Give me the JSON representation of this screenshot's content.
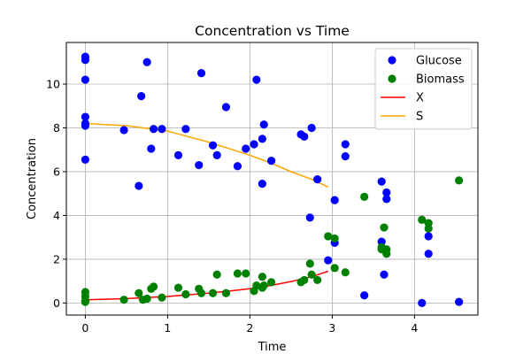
{
  "chart_data": {
    "type": "scatter",
    "title": "Concentration vs Time",
    "xlabel": "Time",
    "ylabel": "Concentration",
    "xlim": [
      -0.23,
      4.77
    ],
    "ylim": [
      -0.55,
      11.9
    ],
    "xticks": [
      0,
      1,
      2,
      3,
      4
    ],
    "yticks": [
      0,
      2,
      4,
      6,
      8,
      10
    ],
    "grid": true,
    "legend_position": "top-right",
    "series": [
      {
        "name": "Glucose",
        "kind": "scatter",
        "color": "#0000ff",
        "points": [
          [
            0.0,
            11.25
          ],
          [
            0.0,
            11.1
          ],
          [
            0.0,
            10.2
          ],
          [
            0.0,
            8.5
          ],
          [
            0.0,
            8.2
          ],
          [
            0.0,
            8.1
          ],
          [
            0.0,
            6.55
          ],
          [
            0.47,
            7.9
          ],
          [
            0.65,
            5.35
          ],
          [
            0.68,
            9.45
          ],
          [
            0.75,
            11.0
          ],
          [
            0.8,
            7.05
          ],
          [
            0.83,
            7.95
          ],
          [
            0.93,
            7.95
          ],
          [
            1.13,
            6.75
          ],
          [
            1.22,
            7.95
          ],
          [
            1.38,
            6.3
          ],
          [
            1.41,
            10.5
          ],
          [
            1.55,
            7.2
          ],
          [
            1.6,
            6.75
          ],
          [
            1.71,
            8.95
          ],
          [
            1.85,
            6.25
          ],
          [
            1.95,
            7.05
          ],
          [
            2.05,
            7.25
          ],
          [
            2.08,
            10.2
          ],
          [
            2.15,
            5.45
          ],
          [
            2.15,
            7.5
          ],
          [
            2.17,
            8.15
          ],
          [
            2.26,
            6.5
          ],
          [
            2.62,
            7.7
          ],
          [
            2.66,
            7.6
          ],
          [
            2.73,
            3.9
          ],
          [
            2.75,
            8.0
          ],
          [
            2.82,
            5.65
          ],
          [
            2.95,
            1.95
          ],
          [
            3.03,
            4.7
          ],
          [
            3.03,
            2.75
          ],
          [
            3.16,
            7.25
          ],
          [
            3.16,
            6.7
          ],
          [
            3.39,
            0.35
          ],
          [
            3.6,
            5.55
          ],
          [
            3.6,
            2.8
          ],
          [
            3.63,
            1.3
          ],
          [
            3.66,
            5.05
          ],
          [
            3.66,
            4.75
          ],
          [
            4.09,
            0.0
          ],
          [
            4.17,
            3.05
          ],
          [
            4.17,
            2.25
          ],
          [
            4.54,
            0.05
          ]
        ]
      },
      {
        "name": "Biomass",
        "kind": "scatter",
        "color": "#008000",
        "points": [
          [
            0.0,
            0.5
          ],
          [
            0.0,
            0.3
          ],
          [
            0.0,
            0.1
          ],
          [
            0.0,
            0.05
          ],
          [
            0.47,
            0.15
          ],
          [
            0.65,
            0.45
          ],
          [
            0.7,
            0.15
          ],
          [
            0.75,
            0.2
          ],
          [
            0.8,
            0.65
          ],
          [
            0.83,
            0.75
          ],
          [
            0.93,
            0.25
          ],
          [
            1.13,
            0.7
          ],
          [
            1.22,
            0.4
          ],
          [
            1.38,
            0.65
          ],
          [
            1.41,
            0.45
          ],
          [
            1.55,
            0.45
          ],
          [
            1.6,
            1.3
          ],
          [
            1.71,
            0.45
          ],
          [
            1.85,
            1.35
          ],
          [
            1.95,
            1.35
          ],
          [
            2.05,
            0.55
          ],
          [
            2.08,
            0.8
          ],
          [
            2.15,
            0.7
          ],
          [
            2.15,
            1.2
          ],
          [
            2.17,
            0.8
          ],
          [
            2.26,
            0.95
          ],
          [
            2.62,
            0.95
          ],
          [
            2.66,
            1.05
          ],
          [
            2.73,
            1.8
          ],
          [
            2.75,
            1.3
          ],
          [
            2.82,
            1.05
          ],
          [
            2.95,
            3.05
          ],
          [
            3.03,
            2.95
          ],
          [
            3.03,
            1.6
          ],
          [
            3.16,
            1.4
          ],
          [
            3.39,
            4.85
          ],
          [
            3.6,
            2.55
          ],
          [
            3.6,
            2.45
          ],
          [
            3.63,
            3.45
          ],
          [
            3.66,
            2.45
          ],
          [
            3.66,
            2.25
          ],
          [
            4.09,
            3.8
          ],
          [
            4.17,
            3.65
          ],
          [
            4.17,
            3.4
          ],
          [
            4.54,
            5.6
          ]
        ]
      },
      {
        "name": "X",
        "kind": "line",
        "color": "#ff0000",
        "points": [
          [
            0.0,
            0.15
          ],
          [
            0.5,
            0.2
          ],
          [
            1.0,
            0.3
          ],
          [
            1.5,
            0.45
          ],
          [
            2.0,
            0.65
          ],
          [
            2.25,
            0.8
          ],
          [
            2.5,
            0.98
          ],
          [
            2.75,
            1.2
          ],
          [
            2.95,
            1.45
          ]
        ]
      },
      {
        "name": "S",
        "kind": "line",
        "color": "#ffa500",
        "points": [
          [
            0.0,
            8.2
          ],
          [
            0.5,
            8.1
          ],
          [
            1.0,
            7.85
          ],
          [
            1.5,
            7.35
          ],
          [
            2.0,
            6.75
          ],
          [
            2.25,
            6.4
          ],
          [
            2.5,
            6.0
          ],
          [
            2.75,
            5.65
          ],
          [
            2.95,
            5.3
          ]
        ]
      }
    ]
  }
}
